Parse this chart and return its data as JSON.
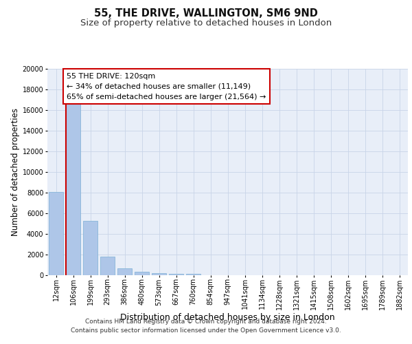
{
  "title_line1": "55, THE DRIVE, WALLINGTON, SM6 9ND",
  "title_line2": "Size of property relative to detached houses in London",
  "xlabel": "Distribution of detached houses by size in London",
  "ylabel": "Number of detached properties",
  "categories": [
    "12sqm",
    "106sqm",
    "199sqm",
    "293sqm",
    "386sqm",
    "480sqm",
    "573sqm",
    "667sqm",
    "760sqm",
    "854sqm",
    "947sqm",
    "1041sqm",
    "1134sqm",
    "1228sqm",
    "1321sqm",
    "1415sqm",
    "1508sqm",
    "1602sqm",
    "1695sqm",
    "1789sqm",
    "1882sqm"
  ],
  "values": [
    8100,
    16600,
    5300,
    1800,
    650,
    330,
    190,
    150,
    130,
    0,
    0,
    0,
    0,
    0,
    0,
    0,
    0,
    0,
    0,
    0,
    0
  ],
  "bar_color": "#aec6e8",
  "bar_edge_color": "#7aafd4",
  "vline_color": "#cc0000",
  "annotation_text": "55 THE DRIVE: 120sqm\n← 34% of detached houses are smaller (11,149)\n65% of semi-detached houses are larger (21,564) →",
  "annotation_box_color": "#ffffff",
  "annotation_box_edge_color": "#cc0000",
  "ylim": [
    0,
    20000
  ],
  "yticks": [
    0,
    2000,
    4000,
    6000,
    8000,
    10000,
    12000,
    14000,
    16000,
    18000,
    20000
  ],
  "grid_color": "#c8d4e8",
  "bg_color": "#e8eef8",
  "footer_line1": "Contains HM Land Registry data © Crown copyright and database right 2024.",
  "footer_line2": "Contains public sector information licensed under the Open Government Licence v3.0.",
  "title_fontsize": 10.5,
  "subtitle_fontsize": 9.5,
  "axis_label_fontsize": 8.5,
  "tick_fontsize": 7,
  "annotation_fontsize": 8,
  "footer_fontsize": 6.5
}
